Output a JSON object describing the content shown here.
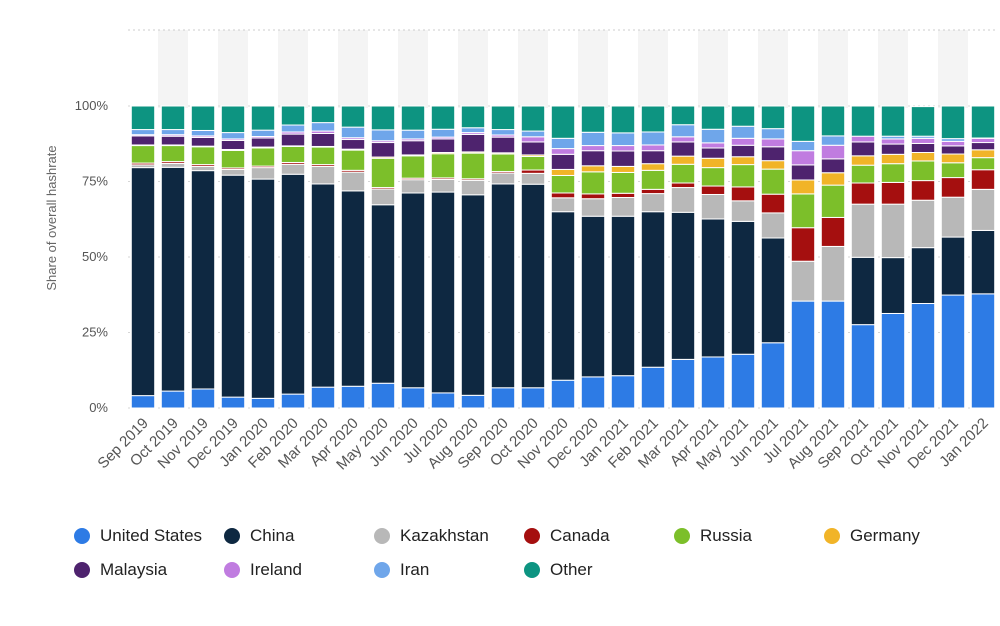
{
  "chart_data": {
    "type": "bar",
    "stacked": true,
    "percent_stacked": true,
    "ylabel": "Share of overall hashrate",
    "y_ticks": [
      "0%",
      "25%",
      "50%",
      "75%",
      "100%"
    ],
    "ylim": [
      0,
      100
    ],
    "grid": true,
    "legend_position": "bottom",
    "categories": [
      "Sep 2019",
      "Oct 2019",
      "Nov 2019",
      "Dec 2019",
      "Jan 2020",
      "Feb 2020",
      "Mar 2020",
      "Apr 2020",
      "May 2020",
      "Jun 2020",
      "Jul 2020",
      "Aug 2020",
      "Sep 2020",
      "Oct 2020",
      "Nov 2020",
      "Dec 2020",
      "Jan 2021",
      "Feb 2021",
      "Mar 2021",
      "Apr 2021",
      "May 2021",
      "Jun 2021",
      "Jul 2021",
      "Aug 2021",
      "Sep 2021",
      "Oct 2021",
      "Nov 2021",
      "Dec 2021",
      "Jan 2022"
    ],
    "series": [
      {
        "name": "United States",
        "color": "#2d7be5",
        "values": [
          4.1,
          5.6,
          6.3,
          3.6,
          3.2,
          4.6,
          6.9,
          7.2,
          8.2,
          6.7,
          5.0,
          4.2,
          6.7,
          6.7,
          9.2,
          10.3,
          10.7,
          13.5,
          16.1,
          16.9,
          17.8,
          21.6,
          35.4,
          35.4,
          27.6,
          31.3,
          34.6,
          37.4,
          37.8
        ]
      },
      {
        "name": "China",
        "color": "#0e2841",
        "values": [
          75.5,
          74.1,
          72.3,
          73.5,
          72.6,
          72.8,
          67.3,
          64.7,
          59.1,
          64.5,
          66.5,
          66.4,
          67.5,
          67.4,
          55.8,
          53.2,
          52.8,
          51.5,
          48.7,
          45.7,
          44.0,
          34.7,
          0,
          0,
          22.3,
          18.5,
          18.5,
          19.2,
          21.0
        ]
      },
      {
        "name": "Kazakhstan",
        "color": "#b8b8b8",
        "values": [
          0.9,
          1.3,
          1.4,
          1.9,
          3.8,
          3.3,
          5.8,
          6.2,
          5.2,
          4.4,
          4.2,
          4.8,
          3.6,
          3.6,
          4.6,
          5.8,
          6.2,
          6.0,
          8.2,
          8.1,
          6.8,
          8.3,
          13.2,
          18.1,
          17.6,
          17.7,
          15.7,
          13.2,
          13.6
        ]
      },
      {
        "name": "Canada",
        "color": "#a50f0f",
        "values": [
          0.6,
          0.6,
          0.6,
          0.5,
          0.5,
          0.6,
          0.6,
          0.6,
          0.5,
          0.5,
          0.5,
          0.5,
          0.5,
          1.1,
          1.6,
          1.6,
          1.4,
          1.4,
          1.5,
          2.8,
          4.6,
          6.2,
          11.1,
          9.6,
          7.0,
          7.2,
          6.5,
          6.5,
          6.5
        ]
      },
      {
        "name": "Russia",
        "color": "#7cbf2a",
        "values": [
          5.8,
          5.3,
          5.9,
          5.8,
          6.0,
          5.3,
          5.8,
          6.7,
          9.7,
          7.4,
          8.0,
          8.5,
          5.8,
          4.5,
          5.8,
          7.3,
          6.9,
          6.3,
          6.2,
          6.1,
          7.4,
          8.3,
          11.2,
          10.7,
          5.9,
          6.2,
          6.5,
          4.9,
          4.0
        ]
      },
      {
        "name": "Germany",
        "color": "#f1b428",
        "values": [
          0.2,
          0.2,
          0.2,
          0.3,
          0.3,
          0.2,
          0.2,
          0.3,
          0.4,
          0.3,
          0.4,
          0.4,
          0.4,
          0.5,
          2.0,
          2.0,
          2.0,
          2.2,
          2.7,
          3.1,
          2.6,
          2.8,
          4.6,
          4.1,
          3.1,
          3.1,
          2.8,
          2.9,
          2.6
        ]
      },
      {
        "name": "Malaysia",
        "color": "#4e236e",
        "values": [
          3.0,
          2.9,
          2.9,
          3.0,
          3.0,
          3.9,
          4.3,
          3.2,
          4.8,
          4.7,
          4.5,
          5.8,
          5.2,
          4.3,
          5.0,
          5.0,
          5.1,
          4.3,
          4.7,
          3.4,
          3.8,
          4.6,
          5.0,
          4.6,
          4.6,
          3.4,
          3.0,
          2.7,
          2.4
        ]
      },
      {
        "name": "Ireland",
        "color": "#c07ce0",
        "values": [
          0.4,
          0.5,
          0.5,
          0.5,
          0.5,
          0.7,
          0.8,
          0.6,
          0.6,
          0.6,
          0.6,
          0.6,
          0.7,
          1.7,
          1.9,
          1.7,
          1.8,
          1.9,
          1.7,
          1.7,
          2.3,
          2.6,
          4.7,
          4.5,
          1.9,
          1.7,
          1.7,
          1.5,
          1.4
        ]
      },
      {
        "name": "Iran",
        "color": "#6fa6ea",
        "values": [
          1.7,
          1.7,
          1.8,
          2.1,
          2.1,
          2.3,
          2.8,
          3.5,
          3.6,
          2.9,
          2.6,
          1.6,
          1.8,
          1.9,
          3.4,
          4.4,
          4.2,
          4.3,
          4.0,
          4.5,
          4.0,
          3.4,
          3.1,
          3.1,
          0,
          0.9,
          0.7,
          0.9,
          0.1
        ]
      },
      {
        "name": "Other",
        "color": "#0d9481",
        "values": [
          7.8,
          7.8,
          8.1,
          8.8,
          8.0,
          6.3,
          5.5,
          7.0,
          7.9,
          8.0,
          7.7,
          7.2,
          7.8,
          8.3,
          10.7,
          8.7,
          8.9,
          8.6,
          6.2,
          7.7,
          6.7,
          7.5,
          11.7,
          9.9,
          10.0,
          10.0,
          9.8,
          10.8,
          10.6
        ]
      }
    ]
  }
}
